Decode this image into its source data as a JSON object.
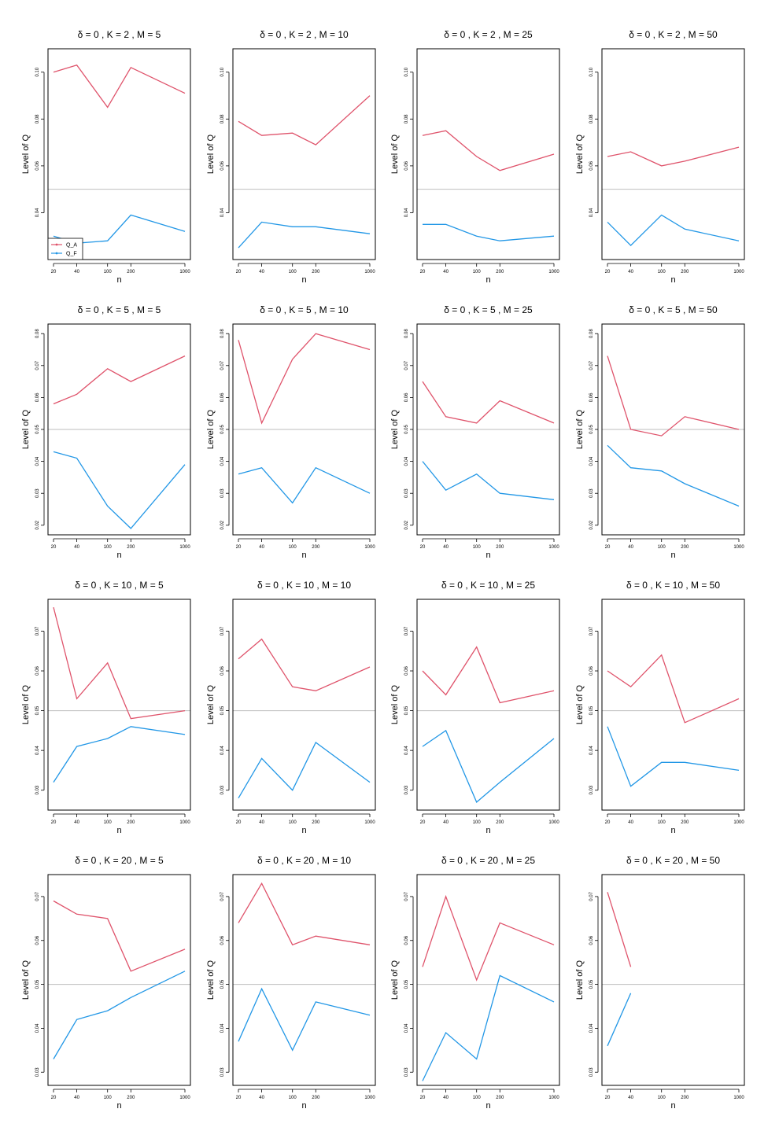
{
  "figure": {
    "ylabel": "Level of Q",
    "xlabel": "n",
    "reference_level": 0.05,
    "colors": {
      "Q_A": "#DF536B",
      "Q_F": "#2297E6",
      "reference": "#BEBEBE",
      "frame": "#000000"
    },
    "legend": {
      "placement": "bottom-left of first panel",
      "entries": [
        "Q_A",
        "Q_F"
      ]
    }
  },
  "chart_data": [
    {
      "type": "line",
      "title": "δ = 0 , K = 2 , M = 5",
      "x": [
        20,
        40,
        100,
        200,
        1000
      ],
      "xticklabels": [
        "20",
        "40",
        "100",
        "200",
        "1000"
      ],
      "ylim": [
        0.02,
        0.11
      ],
      "yticks": [
        "0.04",
        "0.06",
        "0.08",
        "0.10"
      ],
      "series": [
        {
          "name": "Q_A",
          "values": [
            0.1,
            0.103,
            0.085,
            0.102,
            0.091
          ]
        },
        {
          "name": "Q_F",
          "values": [
            0.03,
            0.027,
            0.028,
            0.039,
            0.032
          ]
        }
      ]
    },
    {
      "type": "line",
      "title": "δ = 0 , K = 2 , M = 10",
      "x": [
        20,
        40,
        100,
        200,
        1000
      ],
      "xticklabels": [
        "20",
        "40",
        "100",
        "200",
        "1000"
      ],
      "ylim": [
        0.02,
        0.11
      ],
      "yticks": [
        "0.04",
        "0.06",
        "0.08",
        "0.10"
      ],
      "series": [
        {
          "name": "Q_A",
          "values": [
            0.079,
            0.073,
            0.074,
            0.069,
            0.09
          ]
        },
        {
          "name": "Q_F",
          "values": [
            0.025,
            0.036,
            0.034,
            0.034,
            0.031
          ]
        }
      ]
    },
    {
      "type": "line",
      "title": "δ = 0 , K = 2 , M = 25",
      "x": [
        20,
        40,
        100,
        200,
        1000
      ],
      "xticklabels": [
        "20",
        "40",
        "100",
        "200",
        "1000"
      ],
      "ylim": [
        0.02,
        0.11
      ],
      "yticks": [
        "0.04",
        "0.06",
        "0.08",
        "0.10"
      ],
      "series": [
        {
          "name": "Q_A",
          "values": [
            0.073,
            0.075,
            0.064,
            0.058,
            0.065
          ]
        },
        {
          "name": "Q_F",
          "values": [
            0.035,
            0.035,
            0.03,
            0.028,
            0.03
          ]
        }
      ]
    },
    {
      "type": "line",
      "title": "δ = 0 , K = 2 , M = 50",
      "x": [
        20,
        40,
        100,
        200,
        1000
      ],
      "xticklabels": [
        "20",
        "40",
        "100",
        "200",
        "1000"
      ],
      "ylim": [
        0.02,
        0.11
      ],
      "yticks": [
        "0.04",
        "0.06",
        "0.08",
        "0.10"
      ],
      "series": [
        {
          "name": "Q_A",
          "values": [
            0.064,
            0.066,
            0.06,
            0.062,
            0.068
          ]
        },
        {
          "name": "Q_F",
          "values": [
            0.036,
            0.026,
            0.039,
            0.033,
            0.028
          ]
        }
      ]
    },
    {
      "type": "line",
      "title": "δ = 0 , K = 5 , M = 5",
      "x": [
        20,
        40,
        100,
        200,
        1000
      ],
      "xticklabels": [
        "20",
        "40",
        "100",
        "200",
        "1000"
      ],
      "ylim": [
        0.017,
        0.083
      ],
      "yticks": [
        "0.02",
        "0.03",
        "0.04",
        "0.05",
        "0.06",
        "0.07",
        "0.08"
      ],
      "series": [
        {
          "name": "Q_A",
          "values": [
            0.058,
            0.061,
            0.069,
            0.065,
            0.073
          ]
        },
        {
          "name": "Q_F",
          "values": [
            0.043,
            0.041,
            0.026,
            0.019,
            0.039
          ]
        }
      ]
    },
    {
      "type": "line",
      "title": "δ = 0 , K = 5 , M = 10",
      "x": [
        20,
        40,
        100,
        200,
        1000
      ],
      "xticklabels": [
        "20",
        "40",
        "100",
        "200",
        "1000"
      ],
      "ylim": [
        0.017,
        0.083
      ],
      "yticks": [
        "0.02",
        "0.03",
        "0.04",
        "0.05",
        "0.06",
        "0.07",
        "0.08"
      ],
      "series": [
        {
          "name": "Q_A",
          "values": [
            0.078,
            0.052,
            0.072,
            0.08,
            0.075
          ]
        },
        {
          "name": "Q_F",
          "values": [
            0.036,
            0.038,
            0.027,
            0.038,
            0.03
          ]
        }
      ]
    },
    {
      "type": "line",
      "title": "δ = 0 , K = 5 , M = 25",
      "x": [
        20,
        40,
        100,
        200,
        1000
      ],
      "xticklabels": [
        "20",
        "40",
        "100",
        "200",
        "1000"
      ],
      "ylim": [
        0.017,
        0.083
      ],
      "yticks": [
        "0.02",
        "0.03",
        "0.04",
        "0.05",
        "0.06",
        "0.07",
        "0.08"
      ],
      "series": [
        {
          "name": "Q_A",
          "values": [
            0.065,
            0.054,
            0.052,
            0.059,
            0.052
          ]
        },
        {
          "name": "Q_F",
          "values": [
            0.04,
            0.031,
            0.036,
            0.03,
            0.028
          ]
        }
      ]
    },
    {
      "type": "line",
      "title": "δ = 0 , K = 5 , M = 50",
      "x": [
        20,
        40,
        100,
        200,
        1000
      ],
      "xticklabels": [
        "20",
        "40",
        "100",
        "200",
        "1000"
      ],
      "ylim": [
        0.017,
        0.083
      ],
      "yticks": [
        "0.02",
        "0.03",
        "0.04",
        "0.05",
        "0.06",
        "0.07",
        "0.08"
      ],
      "series": [
        {
          "name": "Q_A",
          "values": [
            0.073,
            0.05,
            0.048,
            0.054,
            0.05
          ]
        },
        {
          "name": "Q_F",
          "values": [
            0.045,
            0.038,
            0.037,
            0.033,
            0.026
          ]
        }
      ]
    },
    {
      "type": "line",
      "title": "δ = 0 , K = 10 , M = 5",
      "x": [
        20,
        40,
        100,
        200,
        1000
      ],
      "xticklabels": [
        "20",
        "40",
        "100",
        "200",
        "1000"
      ],
      "ylim": [
        0.025,
        0.078
      ],
      "yticks": [
        "0.03",
        "0.04",
        "0.05",
        "0.06",
        "0.07"
      ],
      "series": [
        {
          "name": "Q_A",
          "values": [
            0.076,
            0.053,
            0.062,
            0.048,
            0.05
          ]
        },
        {
          "name": "Q_F",
          "values": [
            0.032,
            0.041,
            0.043,
            0.046,
            0.044
          ]
        }
      ]
    },
    {
      "type": "line",
      "title": "δ = 0 , K = 10 , M = 10",
      "x": [
        20,
        40,
        100,
        200,
        1000
      ],
      "xticklabels": [
        "20",
        "40",
        "100",
        "200",
        "1000"
      ],
      "ylim": [
        0.025,
        0.078
      ],
      "yticks": [
        "0.03",
        "0.04",
        "0.05",
        "0.06",
        "0.07"
      ],
      "series": [
        {
          "name": "Q_A",
          "values": [
            0.063,
            0.068,
            0.056,
            0.055,
            0.061
          ]
        },
        {
          "name": "Q_F",
          "values": [
            0.028,
            0.038,
            0.03,
            0.042,
            0.032
          ]
        }
      ]
    },
    {
      "type": "line",
      "title": "δ = 0 , K = 10 , M = 25",
      "x": [
        20,
        40,
        100,
        200,
        1000
      ],
      "xticklabels": [
        "20",
        "40",
        "100",
        "200",
        "1000"
      ],
      "ylim": [
        0.025,
        0.078
      ],
      "yticks": [
        "0.03",
        "0.04",
        "0.05",
        "0.06",
        "0.07"
      ],
      "series": [
        {
          "name": "Q_A",
          "values": [
            0.06,
            0.054,
            0.066,
            0.052,
            0.055
          ]
        },
        {
          "name": "Q_F",
          "values": [
            0.041,
            0.045,
            0.027,
            0.032,
            0.043
          ]
        }
      ]
    },
    {
      "type": "line",
      "title": "δ = 0 , K = 10 , M = 50",
      "x": [
        20,
        40,
        100,
        200,
        1000
      ],
      "xticklabels": [
        "20",
        "40",
        "100",
        "200",
        "1000"
      ],
      "ylim": [
        0.025,
        0.078
      ],
      "yticks": [
        "0.03",
        "0.04",
        "0.05",
        "0.06",
        "0.07"
      ],
      "series": [
        {
          "name": "Q_A",
          "values": [
            0.06,
            0.056,
            0.064,
            0.047,
            0.053
          ]
        },
        {
          "name": "Q_F",
          "values": [
            0.046,
            0.031,
            0.037,
            0.037,
            0.035
          ]
        }
      ]
    },
    {
      "type": "line",
      "title": "δ = 0 , K = 20 , M = 5",
      "x": [
        20,
        40,
        100,
        200,
        1000
      ],
      "xticklabels": [
        "20",
        "40",
        "100",
        "200",
        "1000"
      ],
      "ylim": [
        0.027,
        0.075
      ],
      "yticks": [
        "0.03",
        "0.04",
        "0.05",
        "0.06",
        "0.07"
      ],
      "series": [
        {
          "name": "Q_A",
          "values": [
            0.069,
            0.066,
            0.065,
            0.053,
            0.058
          ]
        },
        {
          "name": "Q_F",
          "values": [
            0.033,
            0.042,
            0.044,
            0.047,
            0.053
          ]
        }
      ]
    },
    {
      "type": "line",
      "title": "δ = 0 , K = 20 , M = 10",
      "x": [
        20,
        40,
        100,
        200,
        1000
      ],
      "xticklabels": [
        "20",
        "40",
        "100",
        "200",
        "1000"
      ],
      "ylim": [
        0.027,
        0.075
      ],
      "yticks": [
        "0.03",
        "0.04",
        "0.05",
        "0.06",
        "0.07"
      ],
      "series": [
        {
          "name": "Q_A",
          "values": [
            0.064,
            0.073,
            0.059,
            0.061,
            0.059
          ]
        },
        {
          "name": "Q_F",
          "values": [
            0.037,
            0.049,
            0.035,
            0.046,
            0.043
          ]
        }
      ]
    },
    {
      "type": "line",
      "title": "δ = 0 , K = 20 , M = 25",
      "x": [
        20,
        40,
        100,
        200,
        1000
      ],
      "xticklabels": [
        "20",
        "40",
        "100",
        "200",
        "1000"
      ],
      "ylim": [
        0.027,
        0.075
      ],
      "yticks": [
        "0.03",
        "0.04",
        "0.05",
        "0.06",
        "0.07"
      ],
      "series": [
        {
          "name": "Q_A",
          "values": [
            0.054,
            0.07,
            0.051,
            0.064,
            0.059
          ]
        },
        {
          "name": "Q_F",
          "values": [
            0.028,
            0.039,
            0.033,
            0.052,
            0.046
          ]
        }
      ]
    },
    {
      "type": "line",
      "title": "δ = 0 , K = 20 , M = 50",
      "x": [
        20,
        40,
        100,
        200,
        1000
      ],
      "xticklabels": [
        "20",
        "40",
        "100",
        "200",
        "1000"
      ],
      "ylim": [
        0.027,
        0.075
      ],
      "yticks": [
        "0.03",
        "0.04",
        "0.05",
        "0.06",
        "0.07"
      ],
      "series": [
        {
          "name": "Q_A",
          "values": [
            0.071,
            0.054,
            null,
            null,
            null
          ]
        },
        {
          "name": "Q_F",
          "values": [
            0.036,
            0.048,
            null,
            null,
            null
          ]
        }
      ]
    }
  ]
}
